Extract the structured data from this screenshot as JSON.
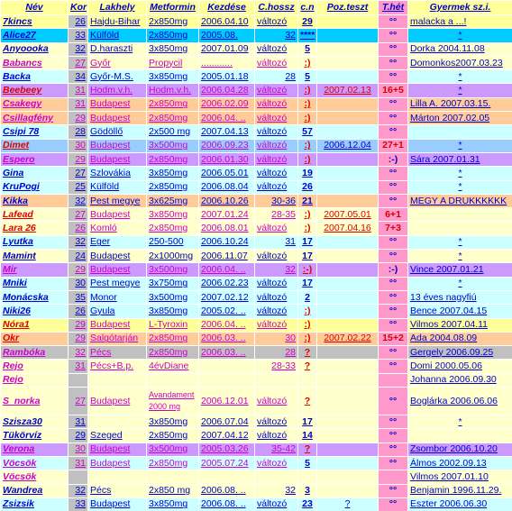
{
  "headers": [
    "Név",
    "Kor",
    "Lakhely",
    "Metformin",
    "Kezdése",
    "C.hossz",
    "c.n",
    "Poz.teszt",
    "T.hét",
    "Gyermek sz.i."
  ],
  "colors": {
    "yellow": "#ffff99",
    "light_yellow": "#ffffcc",
    "cyan": "#00ccff",
    "light_cyan": "#ccffff",
    "purple": "#cc99ff",
    "pink": "#ff99cc",
    "orange": "#ffcc99",
    "grey": "#c0c0c0",
    "white": "#ffffff",
    "light_blue": "#99ccff",
    "light_green": "#ccffcc"
  },
  "rows": [
    {
      "bg": "#ffff99",
      "cells": [
        "7kincs",
        "26",
        "Hajdu-Bihar",
        "2x850mg",
        "2006.04.10",
        "változó",
        "29",
        "",
        "°°",
        "malacka a ...!"
      ]
    },
    {
      "bg": "#00ccff",
      "cells": [
        "Alice27",
        "33",
        "Külföld",
        "2x850mg",
        "2005.08. ",
        "32",
        "****",
        "",
        "°°",
        "*"
      ]
    },
    {
      "bg": "#ffffcc",
      "cells": [
        "Anyoooka",
        "32",
        "D.haraszti",
        "3x850mg",
        "2007.01.09",
        "változó",
        "5",
        "",
        "°°",
        "Dorka     2004.11.08"
      ]
    },
    {
      "bg": "#ffffcc",
      "cells": [
        "Babancs",
        "27",
        "Győr",
        "Propycil",
        "............",
        "változó",
        ":)",
        "",
        "°°",
        "Domonkos2007.03.23"
      ]
    },
    {
      "bg": "#ccffff",
      "cells": [
        "Backa",
        "34",
        "Győr-M.S.",
        "3x850mg",
        "2005.01.18",
        "28",
        "5",
        "",
        "°°",
        "*"
      ]
    },
    {
      "bg": "#cc99ff",
      "cells": [
        "Beebeey",
        "31",
        "Hodm.v.h.",
        "Hodm.v.h.",
        "2006.04.28",
        "változó",
        ":)",
        "2007.02.13",
        "16+5",
        "*"
      ]
    },
    {
      "bg": "#ffcc99",
      "cells": [
        "Csakegy",
        "31",
        "Budapest",
        "2x850mg",
        "2006.02.09",
        "változó",
        ":)",
        "",
        "°°",
        "Lilla A.    2007.03.15."
      ]
    },
    {
      "bg": "#ffcc99",
      "cells": [
        "Csillagfény",
        "29",
        "Budapest",
        "2x850mg",
        "2006.04. ..",
        "változó",
        ":)",
        "",
        "°°",
        "Márton    2007.02.05"
      ]
    },
    {
      "bg": "#ccffff",
      "cells": [
        "Csipi 78",
        "28",
        "Gödöllő",
        "2x500 mg",
        "2007.04.13",
        "változó",
        "57",
        "",
        "°°",
        ""
      ]
    },
    {
      "bg": "#99ccff",
      "cells": [
        "Dimet",
        "30",
        "Budapest",
        "3x500mg",
        "2006.09.23",
        "változó",
        ":)",
        "2006.12.04",
        "27+1",
        "*"
      ]
    },
    {
      "bg": "#cc99ff",
      "cells": [
        "Espero",
        "29",
        "Budapest",
        "2x850mg",
        "2006.01.30",
        "változó",
        ":)",
        "",
        ":-)",
        "Sára       2007.01.31"
      ]
    },
    {
      "bg": "#ccffff",
      "cells": [
        "Gina",
        "27",
        "Szlovákia",
        "3x850mg",
        "2006.05.01",
        "változó",
        "19",
        "",
        "°°",
        "*"
      ]
    },
    {
      "bg": "#ccffff",
      "cells": [
        "KruPogi",
        "25",
        "Külföld",
        "2x850mg",
        "2006.08.04",
        "változó",
        "26",
        "",
        "°°",
        "*"
      ]
    },
    {
      "bg": "#ffcc99",
      "cells": [
        "Kikka",
        "32",
        "Pest megye",
        "3x625mg",
        "2006.10.26",
        "30-36",
        "21",
        "",
        "°°",
        "MEGY A DRUKKKKKK"
      ]
    },
    {
      "bg": "#ffffcc",
      "cells": [
        "Lafead",
        "27",
        "Budapest",
        "3x850mg",
        "2007.01.24",
        "28-35",
        ":)",
        "2007.05.01",
        "6+1",
        ""
      ]
    },
    {
      "bg": "#ffffcc",
      "cells": [
        "Lara 26",
        "26",
        "Komló",
        "2x850mg",
        "2006.08.01",
        "változó",
        ":)",
        "2007.04.16",
        "7+3",
        ""
      ]
    },
    {
      "bg": "#ccffff",
      "cells": [
        "Lyutka",
        "32",
        "Eger",
        "250-500",
        "2006.10.24",
        "31",
        "17",
        "",
        "°°",
        "*"
      ]
    },
    {
      "bg": "#ffffcc",
      "cells": [
        "Mamint",
        "24",
        "Budapest",
        "2x1000mg",
        "2006.11.07",
        "változó",
        "17",
        "",
        "°°",
        "*"
      ]
    },
    {
      "bg": "#cc99ff",
      "cells": [
        "Mir",
        "29",
        "Budapest",
        "3x500mg",
        "2006.04. ..",
        "32",
        ":-)",
        "",
        ":-)",
        "Vince     2007.01.21"
      ]
    },
    {
      "bg": "#ccffff",
      "cells": [
        "Mniki",
        "30",
        "Pest megye",
        "3x750mg",
        "2006.02.23",
        "változó",
        "17",
        "",
        "°°",
        "*"
      ]
    },
    {
      "bg": "#ccffff",
      "cells": [
        "Monácska",
        "35",
        "Monor",
        "3x500mg",
        "2007.02.12",
        "változó",
        "2",
        "",
        "°°",
        "13 éves nagyfiú"
      ]
    },
    {
      "bg": "#ccffff",
      "cells": [
        "Niki26",
        "26",
        "Gyula",
        "3x850mg",
        "2005.02. ..",
        "változó",
        ":)",
        "",
        "°°",
        "Bence 2007.04.15"
      ]
    },
    {
      "bg": "#ffff99",
      "cells": [
        "Nóra1",
        "29",
        "Budapest",
        "L-Tyroxin",
        "2006.04. ..",
        "változó",
        ":)",
        "",
        "°°",
        "Vilmos    2007.04.11"
      ]
    },
    {
      "bg": "#ffcc99",
      "cells": [
        "Okr",
        "29",
        "Salgótarján",
        "2x850mg",
        "2006.03. ..",
        "30",
        ":)",
        "2007.02.22",
        "15+2",
        "Ada        2004.08.09"
      ]
    },
    {
      "bg": "#c0c0c0",
      "cells": [
        "Rambóka",
        "32",
        "Pécs",
        "2x850mg",
        "2006.03. ..",
        "28",
        "?",
        "",
        "°°",
        "Gergely   2006.09.25"
      ]
    },
    {
      "bg": "#ffffcc",
      "cells": [
        "Rejo",
        "31",
        "Pécs+B.p.",
        "4évDiane",
        "",
        "28-33",
        "?",
        "",
        "°°",
        "Domi       2000.05.06"
      ]
    },
    {
      "bg": "#ffffcc",
      "cells": [
        "Rejo",
        "",
        "",
        "",
        "",
        "",
        "",
        "",
        "",
        "Johanna   2006.09.30"
      ]
    },
    {
      "bg": "#ffffcc",
      "tall": true,
      "cells": [
        "S_norka",
        "27",
        "Budapest",
        "Avandament\n2000 mg",
        "2006.12.01",
        "változó",
        "?",
        "",
        "°°",
        "Boglárka 2006.06.06"
      ]
    },
    {
      "bg": "#ffffcc",
      "cells": [
        "Szisza30",
        "31",
        "",
        "3x850mg",
        "2006.07.04",
        "változó",
        "17",
        "",
        "°°",
        "*"
      ]
    },
    {
      "bg": "#ffffcc",
      "cells": [
        "Tükörvíz",
        "29",
        "Szeged",
        "2x850mg",
        "2007.04.12",
        "változó",
        "14",
        "",
        "°°",
        ""
      ]
    },
    {
      "bg": "#cc99ff",
      "cells": [
        "Verona",
        "30",
        "Budapest",
        "3x500mg",
        "2005.03.26",
        "35-42",
        "?",
        "",
        "°°",
        "Zsombor  2006.10.20"
      ]
    },
    {
      "bg": "#ccffff",
      "cells": [
        "Vöcsök",
        "31",
        "Budapest",
        "2x850mg",
        "2005.07.24",
        "változó",
        "5",
        "",
        "°°",
        "Álmos     2002.09.13"
      ]
    },
    {
      "bg": "#ffffcc",
      "cells": [
        "Vöcsök",
        "",
        "",
        "",
        "",
        "",
        "",
        "",
        "",
        "Vilmos     2007.01.10"
      ]
    },
    {
      "bg": "#ffffcc",
      "cells": [
        "Wandrea",
        "32",
        "Pécs",
        "2x850 mg",
        "2006.08. ..",
        "32",
        "3",
        "",
        "°°",
        "Benjamin 1996.11.29."
      ]
    },
    {
      "bg": "#ccffff",
      "cells": [
        "Zsizsik",
        "33",
        "Budapest",
        "3x850mg",
        "2006.08. ..",
        "változó",
        "23",
        "?",
        "°°",
        "Eszter     2006.06.30"
      ]
    }
  ]
}
